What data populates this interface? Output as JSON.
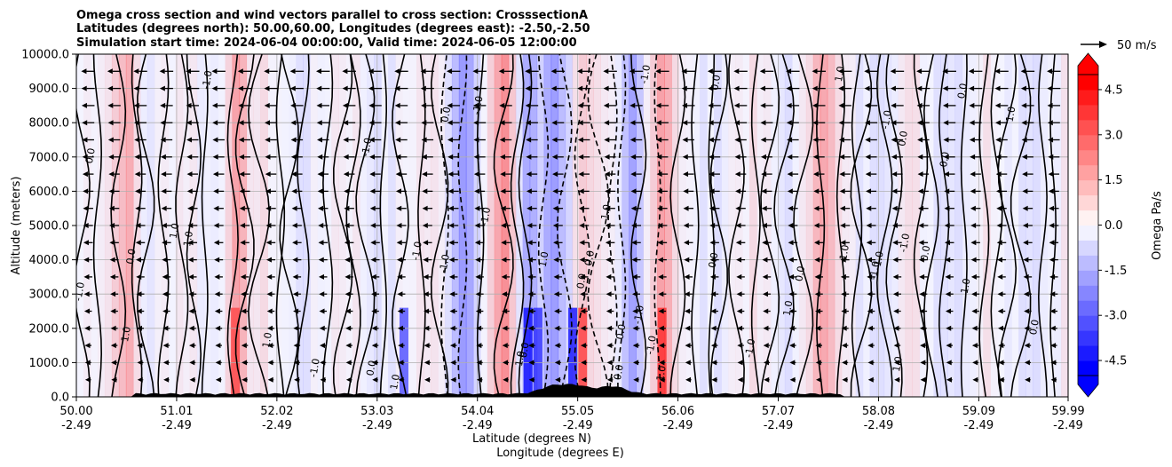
{
  "chart_data": {
    "type": "heatmap",
    "title_lines": [
      "Omega cross section and wind vectors parallel to cross section: CrosssectionA",
      "Latitudes (degrees north): 50.00,60.00, Longitudes (degrees east): -2.50,-2.50",
      "Simulation start time: 2024-06-04 00:00:00, Valid time: 2024-06-05 12:00:00"
    ],
    "ylabel": "Altitude (meters)",
    "xlabel_lines": [
      "Latitude (degrees N)",
      "Longitude (degrees E)"
    ],
    "ylim": [
      0,
      10000
    ],
    "yticks": [
      "0.0",
      "1000.0",
      "2000.0",
      "3000.0",
      "4000.0",
      "5000.0",
      "6000.0",
      "7000.0",
      "8000.0",
      "9000.0",
      "10000.0"
    ],
    "ytick_values": [
      0,
      1000,
      2000,
      3000,
      4000,
      5000,
      6000,
      7000,
      8000,
      9000,
      10000
    ],
    "xlim": [
      50.0,
      59.99
    ],
    "xticks": [
      {
        "lat": "50.00",
        "lon": "-2.49",
        "value": 50.0
      },
      {
        "lat": "51.01",
        "lon": "-2.49",
        "value": 51.01
      },
      {
        "lat": "52.02",
        "lon": "-2.49",
        "value": 52.02
      },
      {
        "lat": "53.03",
        "lon": "-2.49",
        "value": 53.03
      },
      {
        "lat": "54.04",
        "lon": "-2.49",
        "value": 54.04
      },
      {
        "lat": "55.05",
        "lon": "-2.49",
        "value": 55.05
      },
      {
        "lat": "56.06",
        "lon": "-2.49",
        "value": 56.06
      },
      {
        "lat": "57.07",
        "lon": "-2.49",
        "value": 57.07
      },
      {
        "lat": "58.08",
        "lon": "-2.49",
        "value": 58.08
      },
      {
        "lat": "59.09",
        "lon": "-2.49",
        "value": 59.09
      },
      {
        "lat": "59.99",
        "lon": "-2.49",
        "value": 59.99
      }
    ],
    "grid": true,
    "colorbar": {
      "label": "Omega Pa/s",
      "range": [
        -5,
        5
      ],
      "ticks": [
        "-4.5",
        "-3.0",
        "-1.5",
        "0.0",
        "1.5",
        "3.0",
        "4.5"
      ],
      "tick_values": [
        -4.5,
        -3.0,
        -1.5,
        0.0,
        1.5,
        3.0,
        4.5
      ],
      "negative_color": "#0000ff",
      "positive_color": "#ff0000",
      "extend": "both"
    },
    "quiver_key": {
      "label": "50 m/s"
    },
    "contour_labels": [
      "0.0",
      "-1.0",
      "1.0"
    ],
    "features": {
      "negative_omega_columns_lat": [
        53.9,
        54.55,
        54.8,
        55.0,
        55.6
      ],
      "positive_omega_columns_lat": [
        50.5,
        51.6,
        54.3,
        55.05,
        55.9,
        57.5
      ],
      "terrain_peak_lat": [
        54.8,
        55.05,
        55.4
      ]
    }
  }
}
